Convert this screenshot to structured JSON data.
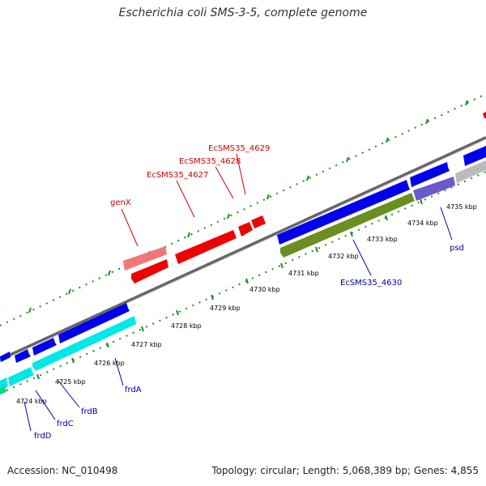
{
  "header": {
    "title": "Escherichia coli SMS-3-5, complete genome"
  },
  "footer": {
    "accession": "Accession: NC_010498",
    "summary": "Topology: circular; Length: 5,068,389 bp; Genes: 4,855"
  },
  "colors": {
    "forward_gene": "#0000ee",
    "reverse_gene_cyan": "#00e8e8",
    "olive_gene": "#6b8e23",
    "purple_gene": "#6a5acd",
    "red_gene": "#ee0000",
    "pink_gene": "#ee7777",
    "grey_gene": "#bbbbbb",
    "green_gene": "#00dd88",
    "backbone": "#888888",
    "tick": "#228b22",
    "label_blue": "#0000aa",
    "label_red": "#cc0000",
    "scale_text": "#000000"
  },
  "scale_labels": [
    {
      "kbp": 4724,
      "text": "4724 kbp"
    },
    {
      "kbp": 4725,
      "text": "4725 kbp"
    },
    {
      "kbp": 4726,
      "text": "4726 kbp"
    },
    {
      "kbp": 4727,
      "text": "4727 kbp"
    },
    {
      "kbp": 4728,
      "text": "4728 kbp"
    },
    {
      "kbp": 4729,
      "text": "4729 kbp"
    },
    {
      "kbp": 4730,
      "text": "4730 kbp"
    },
    {
      "kbp": 4731,
      "text": "4731 kbp"
    },
    {
      "kbp": 4732,
      "text": "4732 kbp"
    },
    {
      "kbp": 4733,
      "text": "4733 kbp"
    },
    {
      "kbp": 4734,
      "text": "4734 kbp"
    },
    {
      "kbp": 4735,
      "text": "4735 kbp"
    }
  ],
  "gene_labels_top": [
    "genX",
    "EcSMS35_4627",
    "EcSMS35_4628",
    "EcSMS35_4629"
  ],
  "gene_labels_bottom": [
    "frdD",
    "frdC",
    "frdB",
    "frdA",
    "EcSMS35_4630",
    "psd"
  ]
}
